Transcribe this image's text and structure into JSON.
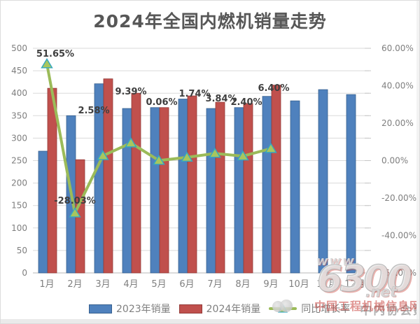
{
  "title": "2024年全国内燃机销量走势",
  "chart_data": {
    "type": "bar",
    "combo": "bar+line",
    "title": "2024年全国内燃机销量走势",
    "categories": [
      "1月",
      "2月",
      "3月",
      "4月",
      "5月",
      "6月",
      "7月",
      "8月",
      "9月",
      "10月",
      "11月",
      "12月"
    ],
    "series": [
      {
        "name": "2023年销量",
        "type": "bar",
        "axis": "left",
        "color": "#4F81BD",
        "border": "#36608F",
        "values": [
          271,
          350,
          421,
          366,
          368,
          387,
          366,
          368,
          393,
          383,
          408,
          397
        ]
      },
      {
        "name": "2024年销量",
        "type": "bar",
        "axis": "left",
        "color": "#C0504D",
        "border": "#943A37",
        "values": [
          411,
          252,
          432,
          400,
          368,
          394,
          380,
          377,
          418,
          null,
          null,
          null
        ]
      },
      {
        "name": "同比增长率",
        "type": "line",
        "axis": "right",
        "color": "#9BBB59",
        "marker": "triangle",
        "marker_fill": "#A8C65E",
        "marker_border": "#35A8C0",
        "values": [
          51.65,
          -28.03,
          2.58,
          9.39,
          0.06,
          1.74,
          3.84,
          2.4,
          6.4
        ],
        "labels": [
          "51.65%",
          "-28.03%",
          "2.58%",
          "9.39%",
          "0.06%",
          "1.74%",
          "3.84%",
          "2.40%",
          "6.40%"
        ]
      }
    ],
    "left_axis": {
      "min": 0,
      "max": 500,
      "step": 50,
      "tick_labels": [
        "500",
        "450",
        "400",
        "350",
        "300",
        "250",
        "200",
        "150",
        "100",
        "50",
        "0"
      ]
    },
    "right_axis": {
      "min": -60,
      "max": 60,
      "step": 20,
      "tick_labels": [
        "60.00%",
        "40.00%",
        "20.00%",
        "0.00%",
        "-20.00%",
        "-40.00%",
        "-60.00%"
      ]
    },
    "grid": true,
    "legend_position": "bottom"
  },
  "legend": {
    "items": [
      {
        "label": "2023年销量",
        "color": "#4F81BD"
      },
      {
        "label": "2024年销量",
        "color": "#C0504D"
      },
      {
        "label": "同比增长率",
        "color": "#9BBB59"
      }
    ],
    "note": "中内协会数据"
  },
  "watermark": {
    "line1": "www.",
    "line2": "6300",
    "line3": ".net",
    "site_name": "中国工程机械信息网"
  },
  "colors": {
    "title_text": "#575757",
    "axis_text": "#7f7f7f",
    "data_label_text": "#3f3f3f",
    "gridline": "#dadada",
    "axis_line": "#b7b7b7"
  }
}
